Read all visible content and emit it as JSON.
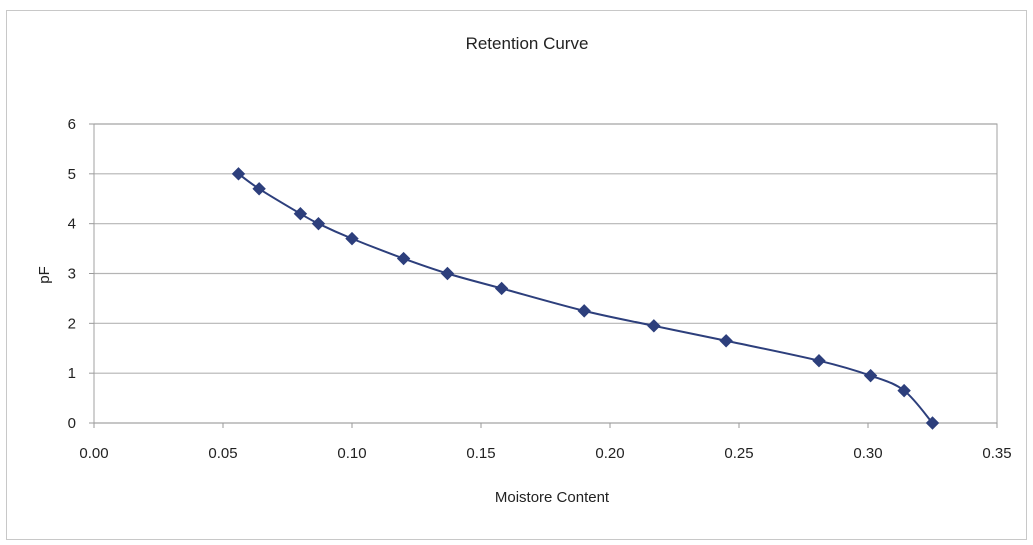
{
  "chart_data": {
    "type": "line",
    "title": "Retention Curve",
    "xlabel": "Moistore Content",
    "ylabel": "pF",
    "xlim": [
      0,
      0.35
    ],
    "ylim": [
      0,
      6
    ],
    "x_ticks": [
      "0.00",
      "0.05",
      "0.10",
      "0.15",
      "0.20",
      "0.25",
      "0.30",
      "0.35"
    ],
    "y_ticks": [
      "0",
      "1",
      "2",
      "3",
      "4",
      "5",
      "6"
    ],
    "grid": "horizontal",
    "legend": "none",
    "marker": "diamond",
    "series": [
      {
        "color": "#2d3f7c",
        "x": [
          0.056,
          0.064,
          0.08,
          0.087,
          0.1,
          0.12,
          0.137,
          0.158,
          0.19,
          0.217,
          0.245,
          0.281,
          0.301,
          0.314,
          0.325
        ],
        "y": [
          5.0,
          4.7,
          4.2,
          4.0,
          3.7,
          3.3,
          3.0,
          2.7,
          2.25,
          1.95,
          1.65,
          1.25,
          0.95,
          0.65,
          0.0
        ]
      }
    ]
  }
}
